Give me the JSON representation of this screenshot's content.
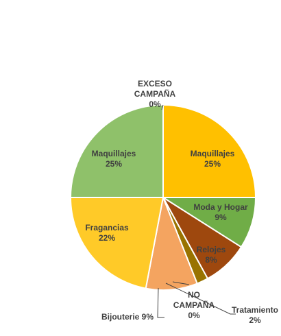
{
  "chart_data": {
    "type": "pie",
    "title": "",
    "slices": [
      {
        "label": "Maquillajes",
        "value": 25,
        "color": "#FFC000"
      },
      {
        "label": "Moda y Hogar",
        "value": 9,
        "color": "#70AD47"
      },
      {
        "label": "Relojes",
        "value": 8,
        "color": "#9E480E"
      },
      {
        "label": "Tratamiento",
        "value": 2,
        "color": "#997300"
      },
      {
        "label": "NO CAMPAÑA",
        "value": 0,
        "color": "#5B9BD5"
      },
      {
        "label": "Bijouterie",
        "value": 9,
        "color": "#F4A460"
      },
      {
        "label": "Fragancias",
        "value": 22,
        "color": "#FFCA28"
      },
      {
        "label": "Maquillajes",
        "value": 25,
        "color": "#8FC16A"
      },
      {
        "label": "EXCESO CAMPAÑA",
        "value": 0,
        "color": "#A5A5A5"
      }
    ],
    "data_labels": [
      {
        "lines": [
          "Maquillajes",
          "25%"
        ]
      },
      {
        "lines": [
          "Moda y Hogar",
          "9%"
        ]
      },
      {
        "lines": [
          "Relojes",
          "8%"
        ]
      },
      {
        "lines": [
          "Tratamiento",
          "2%"
        ]
      },
      {
        "lines": [
          "NO",
          "CAMPAÑA",
          "0%"
        ]
      },
      {
        "lines": [
          "Bijouterie 9%"
        ]
      },
      {
        "lines": [
          "Fragancias",
          "22%"
        ]
      },
      {
        "lines": [
          "Maquillajes",
          "25%"
        ]
      },
      {
        "lines": [
          "EXCESO",
          "CAMPAÑA",
          "0%"
        ]
      }
    ],
    "legend": "none"
  }
}
